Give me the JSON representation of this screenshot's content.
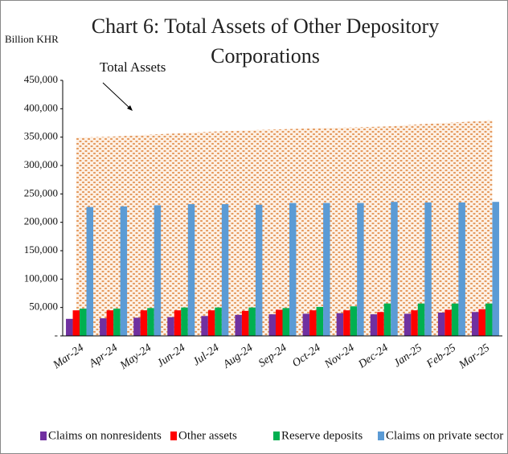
{
  "chart_data": {
    "type": "bar",
    "title": "Chart 6: Total Assets of Other Depository Corporations",
    "y_label": "Billion KHR",
    "annotation": "Total Assets",
    "categories": [
      "Mar-24",
      "Apr-24",
      "May-24",
      "Jun-24",
      "Jul-24",
      "Aug-24",
      "Sep-24",
      "Oct-24",
      "Nov-24",
      "Dec-24",
      "Jan-25",
      "Feb-25",
      "Mar-25"
    ],
    "area": {
      "name": "Total Assets",
      "color": "#f0b78a",
      "values": [
        349000,
        351000,
        354000,
        357000,
        360000,
        362000,
        364000,
        366000,
        367000,
        369000,
        373000,
        376000,
        380000
      ]
    },
    "series": [
      {
        "name": "Claims on nonresidents",
        "color": "#7030a0",
        "values": [
          30000,
          31000,
          32000,
          33000,
          35000,
          37000,
          38000,
          39000,
          40000,
          38000,
          39000,
          41000,
          42000
        ]
      },
      {
        "name": "Other assets",
        "color": "#ff0000",
        "values": [
          45000,
          45000,
          45000,
          45000,
          45000,
          44000,
          46000,
          45000,
          45000,
          42000,
          45000,
          46000,
          47000
        ]
      },
      {
        "name": "Reserve deposits",
        "color": "#00b050",
        "values": [
          48000,
          48000,
          49000,
          50000,
          50000,
          50000,
          49000,
          51000,
          52000,
          57000,
          57000,
          57000,
          57000
        ]
      },
      {
        "name": "Claims on private sector",
        "color": "#5b9bd5",
        "values": [
          227000,
          228000,
          230000,
          232000,
          232000,
          231000,
          234000,
          234000,
          234000,
          236000,
          235000,
          235000,
          236000
        ]
      }
    ],
    "ylim": [
      0,
      450000
    ],
    "yticks": [
      {
        "value": 0,
        "label": "-"
      },
      {
        "value": 50000,
        "label": "50,000"
      },
      {
        "value": 100000,
        "label": "100,000"
      },
      {
        "value": 150000,
        "label": "150,000"
      },
      {
        "value": 200000,
        "label": "200,000"
      },
      {
        "value": 250000,
        "label": "250,000"
      },
      {
        "value": 300000,
        "label": "300,000"
      },
      {
        "value": 350000,
        "label": "350,000"
      },
      {
        "value": 400000,
        "label": "400,000"
      },
      {
        "value": 450000,
        "label": "450,000"
      }
    ],
    "legend": "bottom"
  }
}
